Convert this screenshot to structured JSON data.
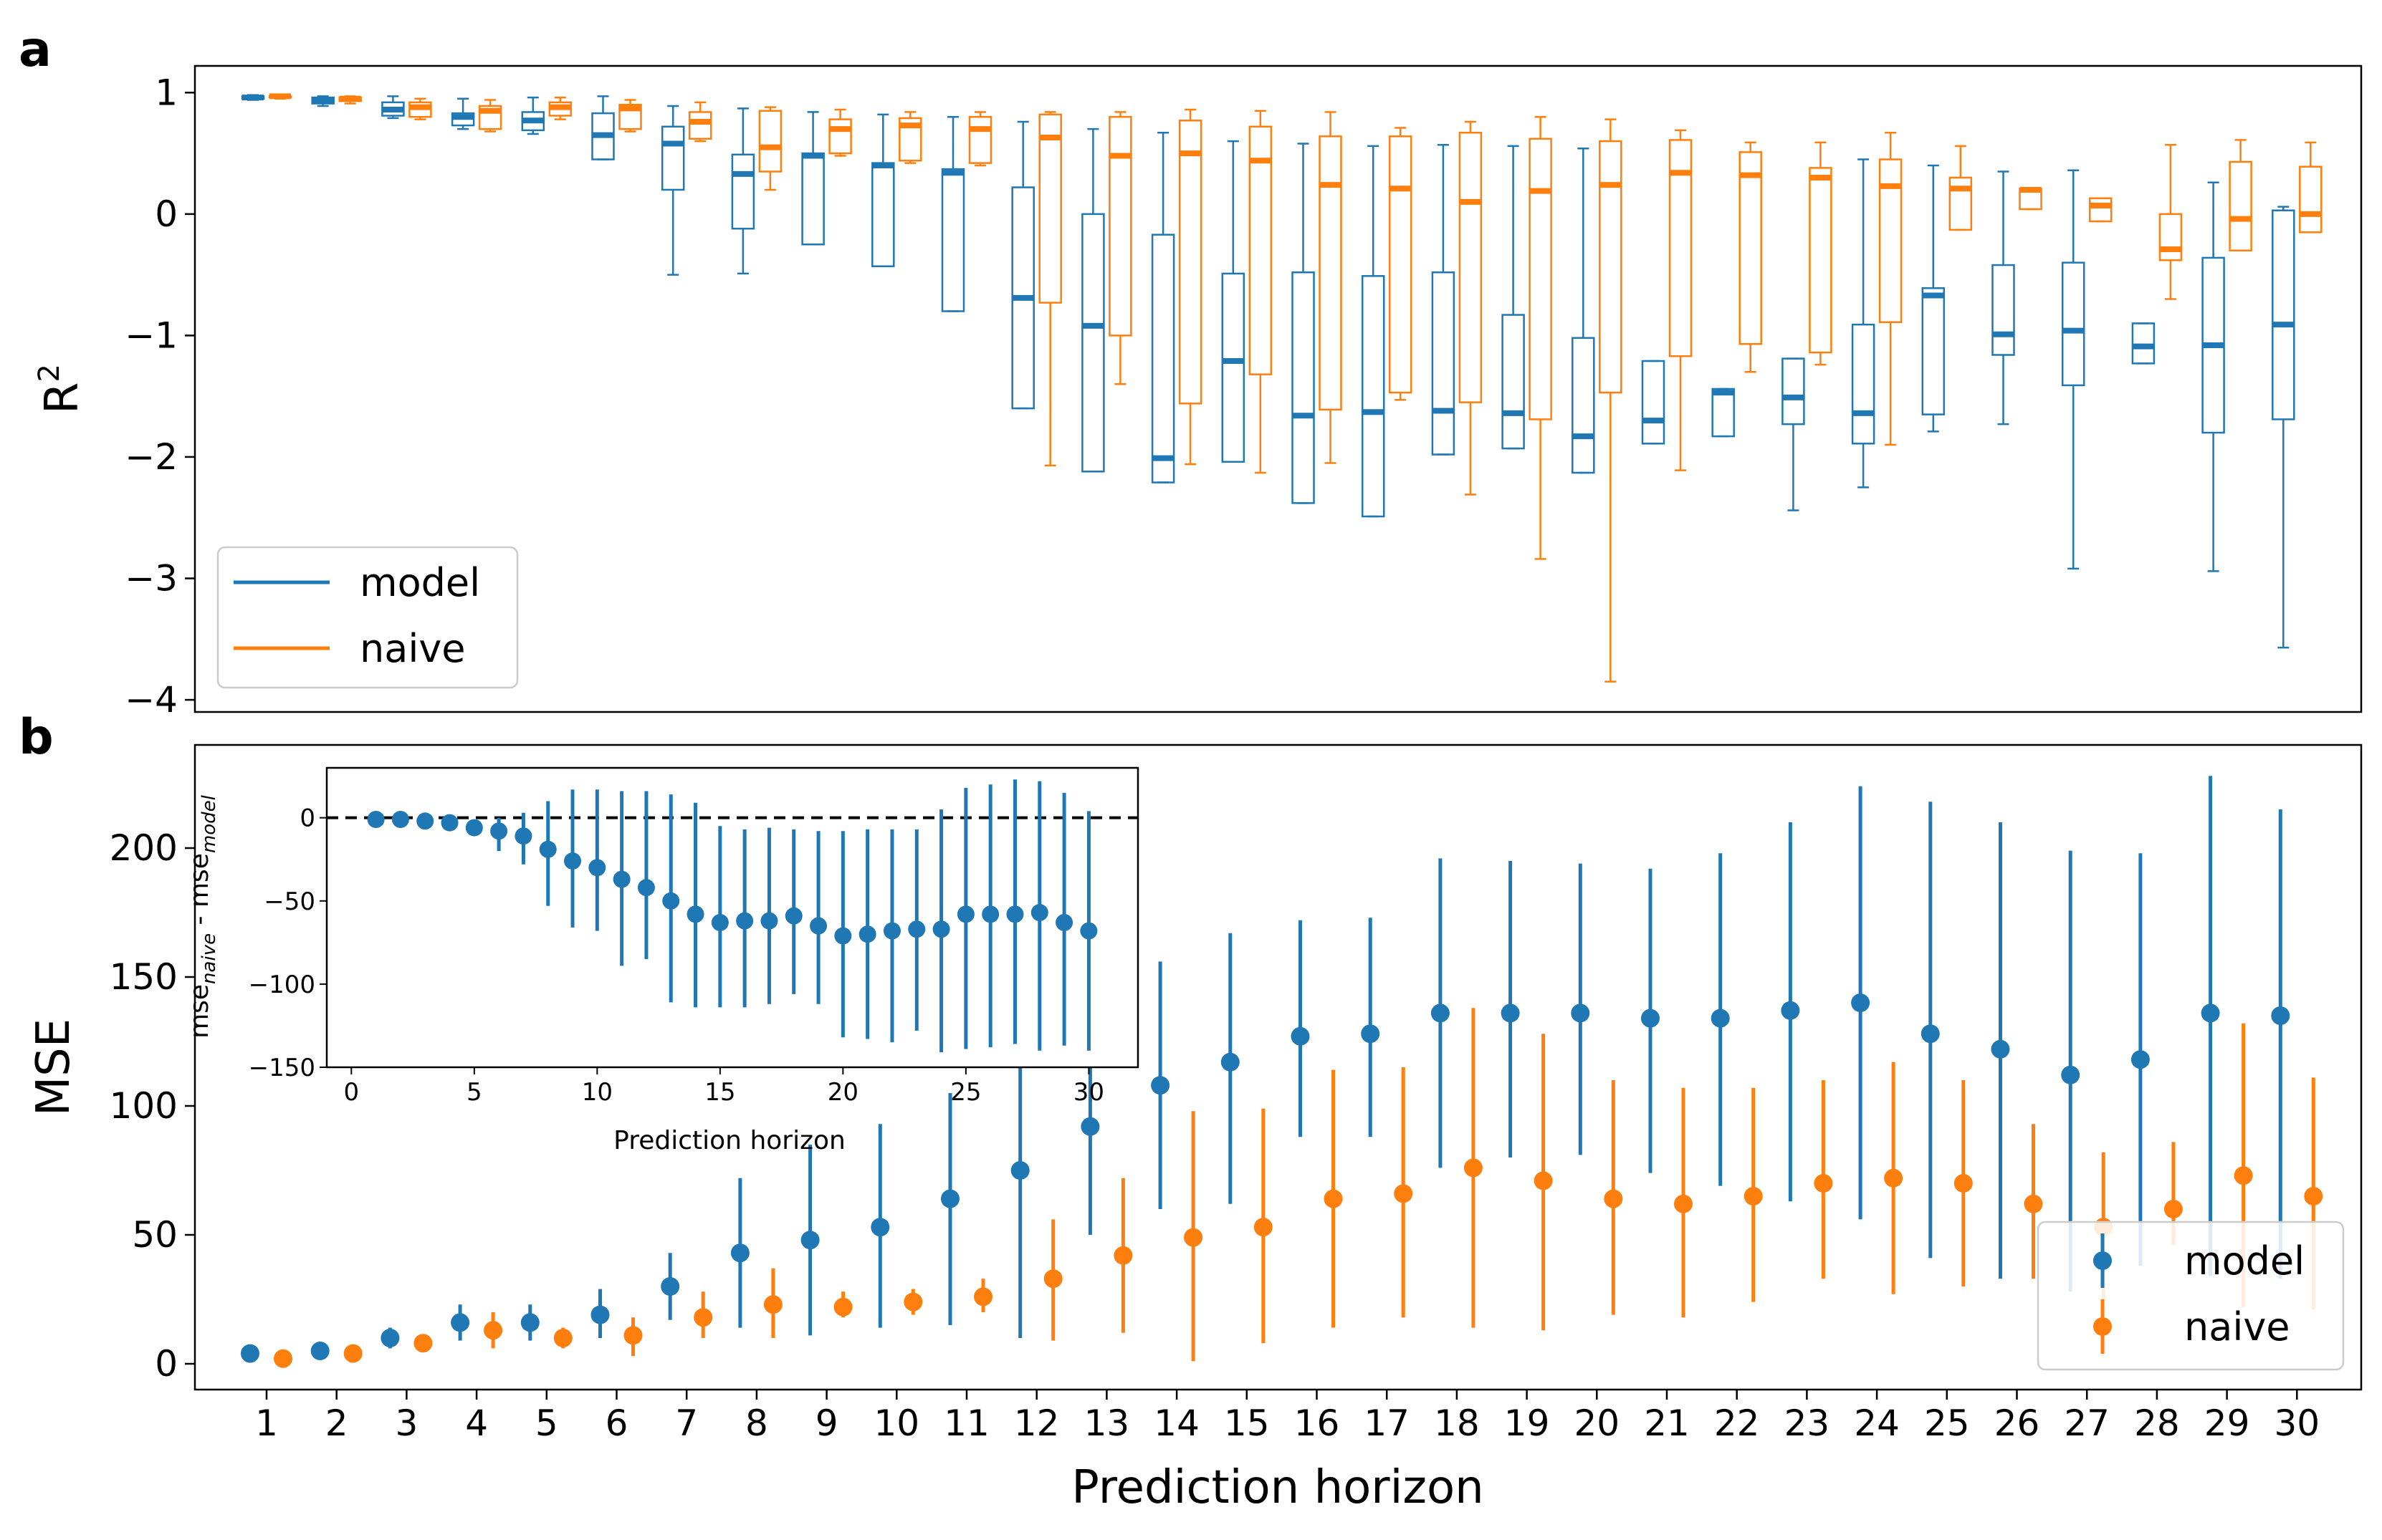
{
  "figure": {
    "panel_a_label": "a",
    "panel_b_label": "b"
  },
  "chart_data": [
    {
      "id": "panel-a",
      "type": "box",
      "xlabel": "",
      "ylabel": "R",
      "ylabel_superscript": "2",
      "ylim": [
        -4.1,
        1.22
      ],
      "yticks": [
        1,
        0,
        -1,
        -2,
        -3,
        -4
      ],
      "ytick_labels": [
        "1",
        "0",
        "−1",
        "−2",
        "−3",
        "−4"
      ],
      "grid": false,
      "legend": {
        "placement": "lower-left",
        "entries": [
          "model",
          "naive"
        ]
      },
      "colors": {
        "model": "#1f77b4",
        "naive": "#ff7f0e"
      },
      "categories": [
        1,
        2,
        3,
        4,
        5,
        6,
        7,
        8,
        9,
        10,
        11,
        12,
        13,
        14,
        15,
        16,
        17,
        18,
        19,
        20,
        21,
        22,
        23,
        24,
        25,
        26,
        27,
        28,
        29,
        30
      ],
      "series": [
        {
          "name": "model",
          "box_stats": [
            {
              "wlo": 0.94,
              "q1": 0.95,
              "med": 0.96,
              "q3": 0.97,
              "whi": 0.98
            },
            {
              "wlo": 0.89,
              "q1": 0.91,
              "med": 0.94,
              "q3": 0.96,
              "whi": 0.97
            },
            {
              "wlo": 0.79,
              "q1": 0.81,
              "med": 0.86,
              "q3": 0.92,
              "whi": 0.97
            },
            {
              "wlo": 0.7,
              "q1": 0.73,
              "med": 0.8,
              "q3": 0.83,
              "whi": 0.95
            },
            {
              "wlo": 0.66,
              "q1": 0.69,
              "med": 0.77,
              "q3": 0.84,
              "whi": 0.96
            },
            {
              "wlo": 0.45,
              "q1": 0.45,
              "med": 0.65,
              "q3": 0.83,
              "whi": 0.97
            },
            {
              "wlo": -0.5,
              "q1": 0.2,
              "med": 0.58,
              "q3": 0.72,
              "whi": 0.89
            },
            {
              "wlo": -0.49,
              "q1": -0.12,
              "med": 0.33,
              "q3": 0.49,
              "whi": 0.87
            },
            {
              "wlo": -0.25,
              "q1": -0.25,
              "med": 0.48,
              "q3": 0.5,
              "whi": 0.84
            },
            {
              "wlo": -0.43,
              "q1": -0.43,
              "med": 0.4,
              "q3": 0.42,
              "whi": 0.82
            },
            {
              "wlo": -0.8,
              "q1": -0.8,
              "med": 0.34,
              "q3": 0.37,
              "whi": 0.8
            },
            {
              "wlo": -1.6,
              "q1": -1.6,
              "med": -0.69,
              "q3": 0.22,
              "whi": 0.76
            },
            {
              "wlo": -2.12,
              "q1": -2.12,
              "med": -0.92,
              "q3": 0.0,
              "whi": 0.7
            },
            {
              "wlo": -2.21,
              "q1": -2.21,
              "med": -2.01,
              "q3": -0.17,
              "whi": 0.67
            },
            {
              "wlo": -2.04,
              "q1": -2.04,
              "med": -1.21,
              "q3": -0.49,
              "whi": 0.6
            },
            {
              "wlo": -2.38,
              "q1": -2.38,
              "med": -1.66,
              "q3": -0.48,
              "whi": 0.58
            },
            {
              "wlo": -2.49,
              "q1": -2.49,
              "med": -1.63,
              "q3": -0.51,
              "whi": 0.56
            },
            {
              "wlo": -1.98,
              "q1": -1.98,
              "med": -1.62,
              "q3": -0.48,
              "whi": 0.57
            },
            {
              "wlo": -1.93,
              "q1": -1.93,
              "med": -1.64,
              "q3": -0.83,
              "whi": 0.56
            },
            {
              "wlo": -2.13,
              "q1": -2.13,
              "med": -1.83,
              "q3": -1.02,
              "whi": 0.54
            },
            {
              "wlo": -1.89,
              "q1": -1.89,
              "med": -1.7,
              "q3": -1.21,
              "whi": -1.21
            },
            {
              "wlo": -1.83,
              "q1": -1.83,
              "med": -1.47,
              "q3": -1.44,
              "whi": -1.44
            },
            {
              "wlo": -2.44,
              "q1": -1.73,
              "med": -1.51,
              "q3": -1.19,
              "whi": -1.19
            },
            {
              "wlo": -2.25,
              "q1": -1.89,
              "med": -1.64,
              "q3": -0.91,
              "whi": 0.45
            },
            {
              "wlo": -1.79,
              "q1": -1.65,
              "med": -0.67,
              "q3": -0.61,
              "whi": 0.4
            },
            {
              "wlo": -1.73,
              "q1": -1.16,
              "med": -0.99,
              "q3": -0.42,
              "whi": 0.35
            },
            {
              "wlo": -2.92,
              "q1": -1.41,
              "med": -0.96,
              "q3": -0.4,
              "whi": 0.36
            },
            {
              "wlo": -1.23,
              "q1": -1.23,
              "med": -1.09,
              "q3": -0.9,
              "whi": -0.9
            },
            {
              "wlo": -2.94,
              "q1": -1.8,
              "med": -1.08,
              "q3": -0.36,
              "whi": 0.26
            },
            {
              "wlo": -3.57,
              "q1": -1.69,
              "med": -0.91,
              "q3": 0.03,
              "whi": 0.06
            }
          ]
        },
        {
          "name": "naive",
          "box_stats": [
            {
              "wlo": 0.95,
              "q1": 0.96,
              "med": 0.97,
              "q3": 0.97,
              "whi": 0.98
            },
            {
              "wlo": 0.91,
              "q1": 0.93,
              "med": 0.95,
              "q3": 0.96,
              "whi": 0.97
            },
            {
              "wlo": 0.78,
              "q1": 0.8,
              "med": 0.88,
              "q3": 0.92,
              "whi": 0.95
            },
            {
              "wlo": 0.68,
              "q1": 0.7,
              "med": 0.85,
              "q3": 0.89,
              "whi": 0.94
            },
            {
              "wlo": 0.78,
              "q1": 0.81,
              "med": 0.88,
              "q3": 0.92,
              "whi": 0.96
            },
            {
              "wlo": 0.68,
              "q1": 0.7,
              "med": 0.87,
              "q3": 0.9,
              "whi": 0.94
            },
            {
              "wlo": 0.6,
              "q1": 0.62,
              "med": 0.76,
              "q3": 0.84,
              "whi": 0.92
            },
            {
              "wlo": 0.2,
              "q1": 0.35,
              "med": 0.55,
              "q3": 0.85,
              "whi": 0.88
            },
            {
              "wlo": 0.48,
              "q1": 0.5,
              "med": 0.7,
              "q3": 0.78,
              "whi": 0.86
            },
            {
              "wlo": 0.42,
              "q1": 0.44,
              "med": 0.73,
              "q3": 0.79,
              "whi": 0.84
            },
            {
              "wlo": 0.4,
              "q1": 0.42,
              "med": 0.7,
              "q3": 0.8,
              "whi": 0.84
            },
            {
              "wlo": -2.07,
              "q1": -0.73,
              "med": 0.63,
              "q3": 0.82,
              "whi": 0.84
            },
            {
              "wlo": -1.4,
              "q1": -1.0,
              "med": 0.48,
              "q3": 0.8,
              "whi": 0.84
            },
            {
              "wlo": -2.06,
              "q1": -1.56,
              "med": 0.5,
              "q3": 0.77,
              "whi": 0.86
            },
            {
              "wlo": -2.13,
              "q1": -1.32,
              "med": 0.44,
              "q3": 0.72,
              "whi": 0.85
            },
            {
              "wlo": -2.05,
              "q1": -1.61,
              "med": 0.24,
              "q3": 0.64,
              "whi": 0.84
            },
            {
              "wlo": -1.53,
              "q1": -1.47,
              "med": 0.21,
              "q3": 0.64,
              "whi": 0.71
            },
            {
              "wlo": -2.31,
              "q1": -1.55,
              "med": 0.1,
              "q3": 0.67,
              "whi": 0.76
            },
            {
              "wlo": -2.84,
              "q1": -1.69,
              "med": 0.19,
              "q3": 0.62,
              "whi": 0.8
            },
            {
              "wlo": -3.85,
              "q1": -1.47,
              "med": 0.24,
              "q3": 0.6,
              "whi": 0.78
            },
            {
              "wlo": -2.11,
              "q1": -1.17,
              "med": 0.34,
              "q3": 0.61,
              "whi": 0.69
            },
            {
              "wlo": -1.3,
              "q1": -1.07,
              "med": 0.32,
              "q3": 0.51,
              "whi": 0.59
            },
            {
              "wlo": -1.24,
              "q1": -1.14,
              "med": 0.3,
              "q3": 0.38,
              "whi": 0.59
            },
            {
              "wlo": -1.9,
              "q1": -0.89,
              "med": 0.23,
              "q3": 0.45,
              "whi": 0.67
            },
            {
              "wlo": -0.13,
              "q1": -0.13,
              "med": 0.21,
              "q3": 0.3,
              "whi": 0.56
            },
            {
              "wlo": 0.04,
              "q1": 0.04,
              "med": 0.2,
              "q3": 0.21,
              "whi": 0.21
            },
            {
              "wlo": -0.06,
              "q1": -0.06,
              "med": 0.07,
              "q3": 0.13,
              "whi": 0.13
            },
            {
              "wlo": -0.7,
              "q1": -0.38,
              "med": -0.29,
              "q3": 0.0,
              "whi": 0.57
            },
            {
              "wlo": -0.3,
              "q1": -0.3,
              "med": -0.04,
              "q3": 0.43,
              "whi": 0.61
            },
            {
              "wlo": -0.15,
              "q1": -0.15,
              "med": 0.0,
              "q3": 0.39,
              "whi": 0.59
            }
          ]
        }
      ]
    },
    {
      "id": "panel-b",
      "type": "errorbar",
      "xlabel": "Prediction horizon",
      "ylabel": "MSE",
      "ylim": [
        -10,
        240
      ],
      "yticks": [
        0,
        50,
        100,
        150,
        200
      ],
      "grid": false,
      "legend": {
        "placement": "lower-right",
        "entries": [
          "model",
          "naive"
        ]
      },
      "colors": {
        "model": "#1f77b4",
        "naive": "#ff7f0e"
      },
      "categories": [
        1,
        2,
        3,
        4,
        5,
        6,
        7,
        8,
        9,
        10,
        11,
        12,
        13,
        14,
        15,
        16,
        17,
        18,
        19,
        20,
        21,
        22,
        23,
        24,
        25,
        26,
        27,
        28,
        29,
        30
      ],
      "series": [
        {
          "name": "model",
          "mean": [
            4,
            5,
            10,
            16,
            16,
            19,
            30,
            43,
            48,
            53,
            64,
            75,
            92,
            108,
            117,
            127,
            128,
            136,
            136,
            136,
            134,
            134,
            137,
            140,
            128,
            122,
            112,
            118,
            136,
            135
          ],
          "lo": [
            3,
            4,
            6,
            9,
            9,
            10,
            17,
            14,
            11,
            14,
            15,
            10,
            50,
            60,
            62,
            88,
            88,
            76,
            80,
            81,
            74,
            69,
            63,
            56,
            41,
            33,
            28,
            38,
            34,
            33
          ],
          "hi": [
            5,
            6,
            14,
            23,
            23,
            29,
            43,
            72,
            85,
            93,
            105,
            132,
            150,
            156,
            167,
            172,
            173,
            196,
            195,
            194,
            192,
            198,
            210,
            224,
            218,
            210,
            199,
            198,
            228,
            215
          ]
        },
        {
          "name": "naive",
          "mean": [
            2,
            4,
            8,
            13,
            10,
            11,
            18,
            23,
            22,
            24,
            26,
            33,
            42,
            49,
            53,
            64,
            66,
            76,
            71,
            64,
            62,
            65,
            70,
            72,
            70,
            62,
            53,
            60,
            73,
            65
          ],
          "lo": [
            1,
            3,
            5,
            6,
            6,
            3,
            10,
            10,
            18,
            19,
            20,
            9,
            12,
            1,
            8,
            14,
            18,
            14,
            13,
            19,
            18,
            24,
            33,
            27,
            30,
            33,
            25,
            46,
            22,
            21
          ],
          "hi": [
            3,
            5,
            11,
            20,
            14,
            18,
            28,
            37,
            28,
            29,
            33,
            56,
            72,
            98,
            99,
            114,
            115,
            138,
            128,
            110,
            107,
            107,
            110,
            117,
            110,
            93,
            82,
            86,
            132,
            111
          ]
        }
      ]
    },
    {
      "id": "panel-b-inset",
      "type": "errorbar",
      "xlabel": "Prediction horizon",
      "ylabel_parts": [
        "mse",
        "naive",
        " - mse",
        "model"
      ],
      "xlim": [
        -1,
        32
      ],
      "ylim": [
        -150,
        30
      ],
      "xticks": [
        0,
        5,
        10,
        15,
        20,
        25,
        30
      ],
      "yticks": [
        0,
        -50,
        -100,
        -150
      ],
      "reference_line": {
        "y": 0,
        "style": "dashed"
      },
      "grid": false,
      "colors": {
        "points": "#1f77b4",
        "reference": "#000000"
      },
      "x": [
        1,
        2,
        3,
        4,
        5,
        6,
        7,
        8,
        9,
        10,
        11,
        12,
        13,
        14,
        15,
        16,
        17,
        18,
        19,
        20,
        21,
        22,
        23,
        24,
        25,
        26,
        27,
        28,
        29,
        30
      ],
      "mean": [
        -1,
        -1,
        -2,
        -3,
        -6,
        -8,
        -11,
        -19,
        -26,
        -30,
        -37,
        -42,
        -50,
        -58,
        -63,
        -62,
        -62,
        -59,
        -65,
        -71,
        -70,
        -68,
        -67,
        -67,
        -58,
        -58,
        -58,
        -57,
        -63,
        -68
      ],
      "lo": [
        -1,
        -2,
        -3,
        -5,
        -10,
        -20,
        -28,
        -53,
        -66,
        -68,
        -89,
        -85,
        -111,
        -114,
        -114,
        -114,
        -112,
        -106,
        -112,
        -132,
        -133,
        -135,
        -128,
        -141,
        -139,
        -138,
        -136,
        -140,
        -137,
        -140
      ],
      "hi": [
        -1,
        -1,
        -1,
        -1,
        -1,
        0,
        3,
        10,
        17,
        17,
        16,
        16,
        14,
        9,
        -5,
        -7,
        -6,
        -7,
        -8,
        -8,
        -7,
        -7,
        -7,
        5,
        18,
        20,
        23,
        22,
        15,
        4
      ]
    }
  ]
}
